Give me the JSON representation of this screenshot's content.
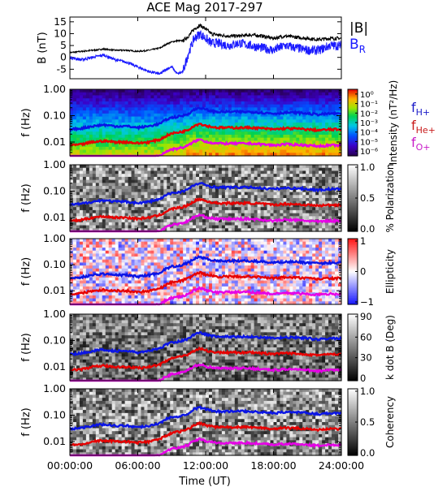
{
  "title": "ACE Mag 2017-297",
  "xlabel": "Time (UT)",
  "colors": {
    "btotal": "#000000",
    "br": "#1a1aff",
    "fH": "#0a14e6",
    "fHe": "#e60000",
    "fO": "#e600e6",
    "fH_label": "#1a1ac8",
    "fHe_label": "#c81a1a",
    "fO_label": "#c81ac8"
  },
  "chart_data": [
    {
      "type": "line",
      "panel": "magnetic-field",
      "ylabel": "B (nT)",
      "ylim": [
        -9,
        17
      ],
      "yticks": [
        -5,
        0,
        5,
        10,
        15
      ],
      "xlim": [
        0,
        24
      ],
      "xticks": [
        "00:00:00",
        "06:00:00",
        "12:00:00",
        "18:00:00",
        "24:00:00"
      ],
      "legend": [
        "|B|",
        "B_R"
      ],
      "legend_placement": "right",
      "series": [
        {
          "name": "|B|",
          "x": [
            0,
            1,
            2,
            3,
            4,
            5,
            6,
            7,
            8,
            8.5,
            9,
            9.5,
            10,
            10.5,
            11,
            11.5,
            12,
            12.5,
            13,
            14,
            15,
            16,
            17,
            18,
            19,
            20,
            21,
            22,
            23,
            24
          ],
          "values": [
            2,
            2.5,
            3,
            3.5,
            3,
            3,
            2.5,
            3,
            4,
            5.5,
            6.5,
            7,
            7,
            9,
            12,
            13.5,
            12,
            10,
            9.5,
            9,
            9,
            9.5,
            9,
            8,
            9,
            8.5,
            8,
            7.5,
            8,
            8
          ]
        },
        {
          "name": "B_R",
          "x": [
            0,
            1,
            2,
            3,
            4,
            5,
            6,
            7,
            8,
            8.5,
            9,
            9.5,
            10,
            10.5,
            11,
            11.5,
            12,
            12.5,
            13,
            14,
            15,
            16,
            17,
            18,
            19,
            20,
            21,
            22,
            23,
            24
          ],
          "values": [
            0,
            -1,
            0,
            1,
            -1,
            -2,
            -4,
            -6,
            -7,
            -5,
            -4,
            -7,
            -6,
            2,
            8,
            10,
            8,
            6,
            6,
            5,
            6,
            5,
            4,
            3,
            5,
            4,
            3,
            3,
            5,
            5
          ]
        }
      ]
    },
    {
      "type": "heatmap",
      "panel": "power-spectrum",
      "ylabel": "f (Hz)",
      "yscale": "log",
      "ylim": [
        0.003,
        1.0
      ],
      "yticks": [
        "1.00",
        "0.10",
        "0.01"
      ],
      "colorbar_label": "Intensity (nT²/Hz)",
      "colorbar_ticks": [
        "10⁰",
        "10⁻¹",
        "10⁻²",
        "10⁻³",
        "10⁻⁴",
        "10⁻⁵",
        "10⁻⁶"
      ],
      "colorbar_range_log10": [
        -6.5,
        0.5
      ],
      "colormap": "rainbow",
      "legend": [
        "f_H+",
        "f_He+",
        "f_O+"
      ]
    },
    {
      "type": "heatmap",
      "panel": "polarization",
      "ylabel": "f (Hz)",
      "yscale": "log",
      "ylim": [
        0.003,
        1.0
      ],
      "yticks": [
        "1.00",
        "0.10",
        "0.01"
      ],
      "colorbar_label": "% Polarization",
      "colorbar_ticks": [
        "1.0",
        "0.5",
        "0.0"
      ],
      "colorbar_range": [
        0,
        1
      ],
      "colormap": "gray"
    },
    {
      "type": "heatmap",
      "panel": "ellipticity",
      "ylabel": "f (Hz)",
      "yscale": "log",
      "ylim": [
        0.003,
        1.0
      ],
      "yticks": [
        "1.00",
        "0.10",
        "0.01"
      ],
      "colorbar_label": "Ellipticity",
      "colorbar_ticks": [
        "1",
        "0",
        "−1"
      ],
      "colorbar_range": [
        -1,
        1
      ],
      "colormap": "blue-white-red"
    },
    {
      "type": "heatmap",
      "panel": "wave-normal-angle",
      "ylabel": "f (Hz)",
      "yscale": "log",
      "ylim": [
        0.003,
        1.0
      ],
      "yticks": [
        "1.00",
        "0.10",
        "0.01"
      ],
      "colorbar_label": "k dot B (Deg)",
      "colorbar_ticks": [
        "90",
        "60",
        "30",
        "0"
      ],
      "colorbar_range": [
        0,
        90
      ],
      "colormap": "gray"
    },
    {
      "type": "heatmap",
      "panel": "coherency",
      "ylabel": "f (Hz)",
      "yscale": "log",
      "ylim": [
        0.003,
        1.0
      ],
      "yticks": [
        "1.00",
        "0.10",
        "0.01"
      ],
      "colorbar_label": "Coherency",
      "colorbar_ticks": [
        "1.0",
        "0.5",
        "0.0"
      ],
      "colorbar_range": [
        0,
        1
      ],
      "colormap": "gray"
    }
  ],
  "gyrofrequencies": {
    "x": [
      0,
      1,
      2,
      3,
      4,
      5,
      6,
      7,
      8,
      8.5,
      9,
      9.5,
      10,
      10.5,
      11,
      11.5,
      12,
      12.5,
      13,
      14,
      15,
      16,
      17,
      18,
      19,
      20,
      21,
      22,
      23,
      24
    ],
    "fH": [
      0.03,
      0.033,
      0.04,
      0.045,
      0.04,
      0.04,
      0.035,
      0.04,
      0.05,
      0.07,
      0.085,
      0.09,
      0.1,
      0.12,
      0.17,
      0.2,
      0.17,
      0.15,
      0.14,
      0.14,
      0.14,
      0.14,
      0.13,
      0.12,
      0.13,
      0.13,
      0.12,
      0.11,
      0.12,
      0.12
    ],
    "fHe": [
      0.0075,
      0.008,
      0.01,
      0.011,
      0.01,
      0.01,
      0.009,
      0.01,
      0.0125,
      0.017,
      0.021,
      0.023,
      0.025,
      0.03,
      0.042,
      0.05,
      0.042,
      0.038,
      0.035,
      0.035,
      0.035,
      0.035,
      0.033,
      0.03,
      0.033,
      0.032,
      0.03,
      0.028,
      0.03,
      0.03
    ],
    "fO": [
      0.0019,
      0.0021,
      0.0025,
      0.0028,
      0.0025,
      0.0025,
      0.0022,
      0.0025,
      0.0031,
      0.0043,
      0.0053,
      0.0057,
      0.0063,
      0.0075,
      0.0105,
      0.0125,
      0.0105,
      0.0095,
      0.0088,
      0.0088,
      0.0088,
      0.0088,
      0.0082,
      0.0075,
      0.0082,
      0.008,
      0.0075,
      0.007,
      0.0075,
      0.0075
    ]
  },
  "labels": {
    "legend_btotal": "|B|",
    "legend_br_main": "B",
    "legend_br_sub": "R",
    "f_h_main": "f",
    "f_h_sub": "H+",
    "f_he_main": "f",
    "f_he_sub": "He+",
    "f_o_main": "f",
    "f_o_sub": "O+"
  }
}
